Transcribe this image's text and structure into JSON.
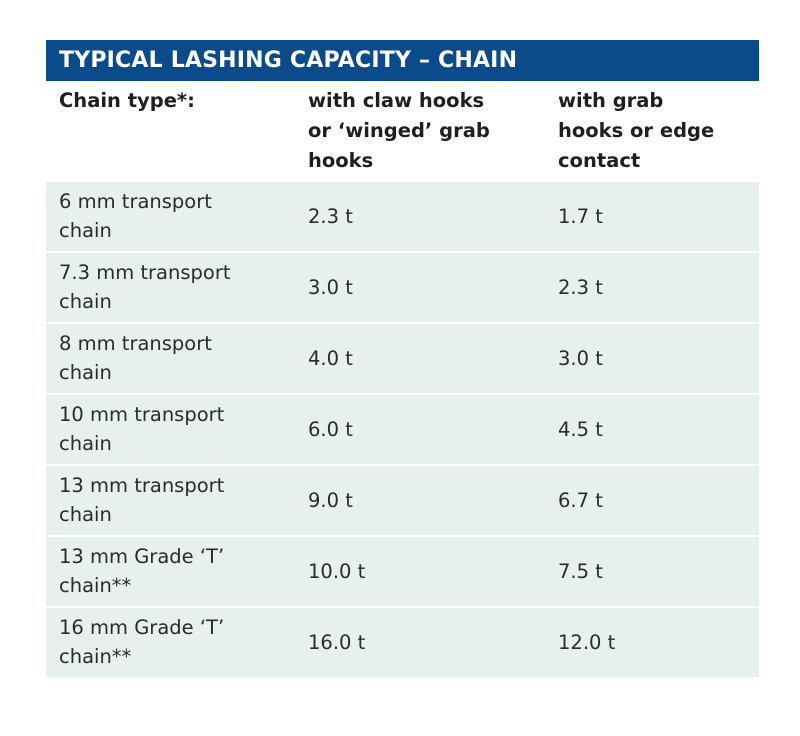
{
  "table": {
    "title": "TYPICAL LASHING CAPACITY – CHAIN",
    "headers": [
      [
        "Chain type*:"
      ],
      [
        "with claw hooks",
        "or ‘winged’ grab",
        "hooks"
      ],
      [
        "with grab",
        "hooks or edge",
        "contact"
      ]
    ],
    "rows": [
      {
        "type": [
          "6 mm transport",
          "chain"
        ],
        "claw": "2.3 t",
        "grab": "1.7 t"
      },
      {
        "type": [
          "7.3 mm transport",
          "chain"
        ],
        "claw": "3.0 t",
        "grab": "2.3 t"
      },
      {
        "type": [
          "8 mm transport",
          "chain"
        ],
        "claw": "4.0 t",
        "grab": "3.0 t"
      },
      {
        "type": [
          "10 mm transport",
          "chain"
        ],
        "claw": "6.0 t",
        "grab": "4.5 t"
      },
      {
        "type": [
          "13 mm transport",
          "chain"
        ],
        "claw": "9.0 t",
        "grab": "6.7 t"
      },
      {
        "type": [
          "13 mm Grade ‘T’",
          "chain**"
        ],
        "claw": "10.0 t",
        "grab": "7.5 t"
      },
      {
        "type": [
          "16 mm Grade ‘T’",
          "chain**"
        ],
        "claw": "16.0 t",
        "grab": "12.0 t"
      }
    ]
  }
}
